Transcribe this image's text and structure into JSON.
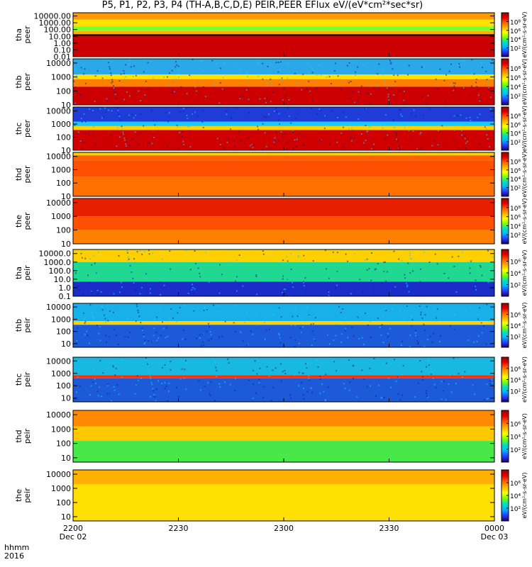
{
  "title": "P5, P1, P2, P3, P4 (TH-A,B,C,D,E) PEIR,PEER EFlux eV/(eV*cm²*sec*sr)",
  "footer": {
    "line1_label": "hhmm",
    "line2_label": "2016",
    "x_ticks": [
      "2200",
      "2230",
      "2300",
      "2330",
      "0000"
    ],
    "x_dates": [
      "Dec 02",
      "Dec 03"
    ]
  },
  "colorscale": [
    "#1a0066",
    "#2a3cff",
    "#00b4ff",
    "#00e0c0",
    "#7cff00",
    "#ffff00",
    "#ffb000",
    "#ff6000",
    "#e00000",
    "#a00000"
  ],
  "chart_data": [
    {
      "type": "heatmap",
      "probe": "tha",
      "species": "peer",
      "ylog": true,
      "ylim": [
        0.01,
        30000
      ],
      "yticks": [
        "0.01",
        "0.10",
        "1.00",
        "10.00",
        "100.00",
        "1000.00",
        "10000.00"
      ],
      "cbar_ticks": [
        "10²",
        "10⁴",
        "10⁶",
        "10⁸"
      ],
      "cbar_label": "eV/(cm²-s-sr-eV)",
      "bands": [
        {
          "y0": 30000,
          "y1": 3000,
          "color": "#ff9a00"
        },
        {
          "y0": 3000,
          "y1": 300,
          "color": "#ffe000"
        },
        {
          "y0": 300,
          "y1": 60,
          "color": "#7cff30"
        },
        {
          "y0": 60,
          "y1": 20,
          "color": "#ffb000"
        },
        {
          "y0": 20,
          "y1": 12,
          "color": "#000000"
        },
        {
          "y0": 12,
          "y1": 0.01,
          "color": "#cc0000"
        }
      ]
    },
    {
      "type": "heatmap",
      "probe": "thb",
      "species": "peer",
      "ylog": true,
      "ylim": [
        10,
        20000
      ],
      "yticks": [
        "10",
        "100",
        "1000",
        "10000"
      ],
      "cbar_ticks": [
        "10²",
        "10⁴",
        "10⁶",
        "10⁸"
      ],
      "cbar_label": "eV/(cm²-s-sr-eV)",
      "noise": true,
      "bands": [
        {
          "y0": 20000,
          "y1": 1500,
          "color": "#2aa8e8"
        },
        {
          "y0": 1500,
          "y1": 700,
          "color": "#ffe000"
        },
        {
          "y0": 700,
          "y1": 200,
          "color": "#ff8000"
        },
        {
          "y0": 200,
          "y1": 10,
          "color": "#cc0000"
        }
      ]
    },
    {
      "type": "heatmap",
      "probe": "thc",
      "species": "peer",
      "ylog": true,
      "ylim": [
        10,
        20000
      ],
      "yticks": [
        "10",
        "100",
        "1000",
        "10000"
      ],
      "cbar_ticks": [
        "10²",
        "10⁴",
        "10⁶",
        "10⁸"
      ],
      "cbar_label": "eV/(cm²-s-sr-eV)",
      "noise": true,
      "bands": [
        {
          "y0": 20000,
          "y1": 1500,
          "color": "#1f3bd8"
        },
        {
          "y0": 1500,
          "y1": 700,
          "color": "#18c8ff"
        },
        {
          "y0": 700,
          "y1": 350,
          "color": "#ffd000"
        },
        {
          "y0": 350,
          "y1": 10,
          "color": "#d00000"
        }
      ]
    },
    {
      "type": "heatmap",
      "probe": "thd",
      "species": "peer",
      "ylog": true,
      "ylim": [
        10,
        20000
      ],
      "yticks": [
        "10",
        "100",
        "1000",
        "10000"
      ],
      "cbar_ticks": [
        "10²",
        "10⁴",
        "10⁶",
        "10⁸"
      ],
      "cbar_label": "eV/(cm²-s-sr-eV)",
      "bands": [
        {
          "y0": 20000,
          "y1": 12000,
          "color": "#ffd000"
        },
        {
          "y0": 12000,
          "y1": 5000,
          "color": "#ff6000"
        },
        {
          "y0": 5000,
          "y1": 300,
          "color": "#ff5000"
        },
        {
          "y0": 300,
          "y1": 10,
          "color": "#ff7000"
        }
      ]
    },
    {
      "type": "heatmap",
      "probe": "the",
      "species": "peer",
      "ylog": true,
      "ylim": [
        10,
        20000
      ],
      "yticks": [
        "10",
        "100",
        "1000",
        "10000"
      ],
      "cbar_ticks": [
        "10²",
        "10⁴",
        "10⁶",
        "10⁸"
      ],
      "cbar_label": "eV/(cm²-s-sr-eV)",
      "bands": [
        {
          "y0": 20000,
          "y1": 1000,
          "color": "#e82000"
        },
        {
          "y0": 1000,
          "y1": 100,
          "color": "#ff5000"
        },
        {
          "y0": 100,
          "y1": 10,
          "color": "#ff8000"
        }
      ]
    },
    {
      "type": "heatmap",
      "probe": "tha",
      "species": "peir",
      "ylog": true,
      "ylim": [
        0.1,
        30000
      ],
      "yticks": [
        "0.1",
        "1.0",
        "10.0",
        "100.0",
        "1000.0",
        "10000.0"
      ],
      "cbar_ticks": [
        "10²",
        "10⁴",
        "10⁶"
      ],
      "cbar_label": "eV/(cm²-s-sr-eV)",
      "noise": true,
      "bands": [
        {
          "y0": 30000,
          "y1": 1000,
          "color": "#ffd000"
        },
        {
          "y0": 1000,
          "y1": 5,
          "color": "#20d890"
        },
        {
          "y0": 5,
          "y1": 0.1,
          "color": "#1c2cc8"
        }
      ]
    },
    {
      "type": "heatmap",
      "probe": "thb",
      "species": "peir",
      "ylog": true,
      "ylim": [
        5,
        20000
      ],
      "yticks": [
        "10",
        "100",
        "1000",
        "10000"
      ],
      "cbar_ticks": [
        "10²",
        "10⁴",
        "10⁶"
      ],
      "cbar_label": "eV/(cm²-s-sr-eV)",
      "noise": true,
      "bands": [
        {
          "y0": 20000,
          "y1": 700,
          "color": "#18b0e8"
        },
        {
          "y0": 700,
          "y1": 350,
          "color": "#ffd000"
        },
        {
          "y0": 350,
          "y1": 5,
          "color": "#1c5ad8"
        }
      ]
    },
    {
      "type": "heatmap",
      "probe": "thc",
      "species": "peir",
      "ylog": true,
      "ylim": [
        5,
        20000
      ],
      "yticks": [
        "10",
        "100",
        "1000",
        "10000"
      ],
      "cbar_ticks": [
        "10²",
        "10⁴",
        "10⁶"
      ],
      "cbar_label": "eV/(cm²-s-sr-eV)",
      "noise": true,
      "bands": [
        {
          "y0": 20000,
          "y1": 700,
          "color": "#18b8e0"
        },
        {
          "y0": 700,
          "y1": 400,
          "color": "#ff3000"
        },
        {
          "y0": 400,
          "y1": 5,
          "color": "#1c5ad8"
        }
      ]
    },
    {
      "type": "heatmap",
      "probe": "thd",
      "species": "peir",
      "ylog": true,
      "ylim": [
        5,
        20000
      ],
      "yticks": [
        "10",
        "100",
        "1000",
        "10000"
      ],
      "cbar_ticks": [
        "10²",
        "10⁴",
        "10⁶"
      ],
      "cbar_label": "eV/(cm²-s-sr-eV)",
      "bands": [
        {
          "y0": 20000,
          "y1": 1500,
          "color": "#ff8a00"
        },
        {
          "y0": 1500,
          "y1": 150,
          "color": "#ffc800"
        },
        {
          "y0": 150,
          "y1": 5,
          "color": "#48e848"
        }
      ]
    },
    {
      "type": "heatmap",
      "probe": "the",
      "species": "peir",
      "ylog": true,
      "ylim": [
        5,
        20000
      ],
      "yticks": [
        "10",
        "100",
        "1000",
        "10000"
      ],
      "cbar_ticks": [
        "10²",
        "10⁴",
        "10⁶"
      ],
      "cbar_label": "eV/(cm²-s-sr-eV)",
      "bands": [
        {
          "y0": 20000,
          "y1": 2000,
          "color": "#ffb000"
        },
        {
          "y0": 2000,
          "y1": 5,
          "color": "#ffe000"
        }
      ]
    }
  ]
}
